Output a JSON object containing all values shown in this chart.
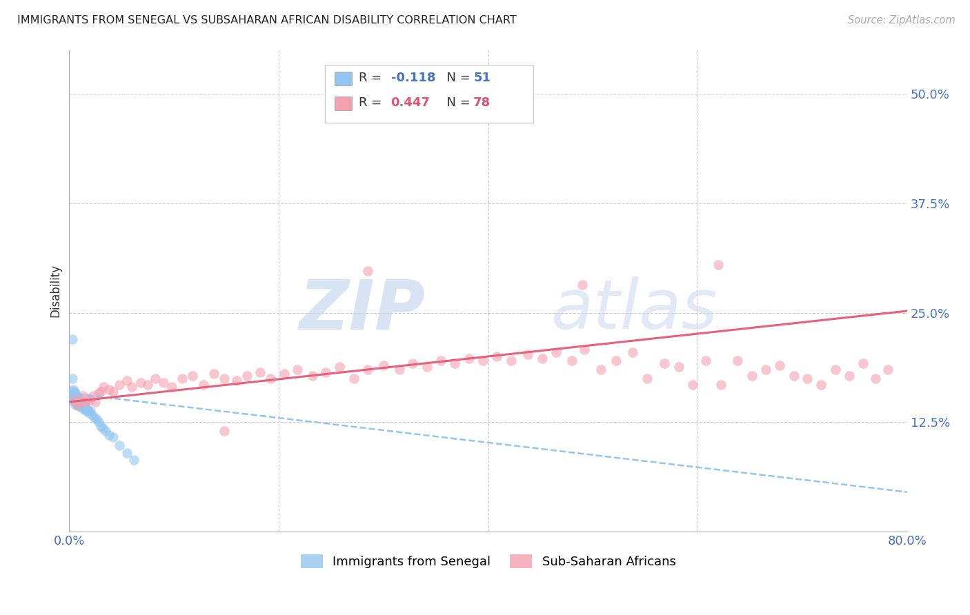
{
  "title": "IMMIGRANTS FROM SENEGAL VS SUBSAHARAN AFRICAN DISABILITY CORRELATION CHART",
  "source": "Source: ZipAtlas.com",
  "ylabel": "Disability",
  "xlim": [
    0.0,
    0.8
  ],
  "ylim": [
    0.0,
    0.55
  ],
  "xticks": [
    0.0,
    0.2,
    0.4,
    0.6,
    0.8
  ],
  "xticklabels": [
    "0.0%",
    "",
    "",
    "",
    "80.0%"
  ],
  "yticks": [
    0.0,
    0.125,
    0.25,
    0.375,
    0.5
  ],
  "yticklabels": [
    "",
    "12.5%",
    "25.0%",
    "37.5%",
    "50.0%"
  ],
  "grid_color": "#cccccc",
  "background_color": "#ffffff",
  "watermark_zip": "ZIP",
  "watermark_atlas": "atlas",
  "blue_color": "#92c5f0",
  "pink_color": "#f4a0b0",
  "trendline_blue_color": "#92c5f0",
  "trendline_pink_color": "#e8607a",
  "blue_x": [
    0.002,
    0.003,
    0.003,
    0.004,
    0.004,
    0.005,
    0.005,
    0.005,
    0.006,
    0.006,
    0.006,
    0.007,
    0.007,
    0.007,
    0.008,
    0.008,
    0.008,
    0.009,
    0.009,
    0.009,
    0.01,
    0.01,
    0.01,
    0.011,
    0.011,
    0.012,
    0.012,
    0.013,
    0.013,
    0.014,
    0.014,
    0.015,
    0.015,
    0.016,
    0.017,
    0.018,
    0.019,
    0.02,
    0.022,
    0.024,
    0.026,
    0.028,
    0.03,
    0.032,
    0.035,
    0.038,
    0.042,
    0.048,
    0.055,
    0.062,
    0.003
  ],
  "blue_y": [
    0.155,
    0.175,
    0.16,
    0.162,
    0.15,
    0.155,
    0.16,
    0.148,
    0.152,
    0.158,
    0.145,
    0.15,
    0.148,
    0.155,
    0.148,
    0.153,
    0.145,
    0.15,
    0.148,
    0.143,
    0.15,
    0.145,
    0.148,
    0.148,
    0.143,
    0.145,
    0.148,
    0.143,
    0.14,
    0.145,
    0.142,
    0.14,
    0.145,
    0.138,
    0.14,
    0.138,
    0.135,
    0.138,
    0.133,
    0.13,
    0.128,
    0.125,
    0.12,
    0.118,
    0.115,
    0.11,
    0.108,
    0.098,
    0.09,
    0.082,
    0.22
  ],
  "pink_x": [
    0.005,
    0.008,
    0.01,
    0.013,
    0.015,
    0.018,
    0.02,
    0.023,
    0.025,
    0.028,
    0.03,
    0.033,
    0.038,
    0.042,
    0.048,
    0.055,
    0.06,
    0.068,
    0.075,
    0.082,
    0.09,
    0.098,
    0.108,
    0.118,
    0.128,
    0.138,
    0.148,
    0.16,
    0.17,
    0.182,
    0.192,
    0.205,
    0.218,
    0.232,
    0.245,
    0.258,
    0.272,
    0.285,
    0.3,
    0.315,
    0.328,
    0.342,
    0.355,
    0.368,
    0.382,
    0.395,
    0.408,
    0.422,
    0.438,
    0.452,
    0.465,
    0.48,
    0.492,
    0.508,
    0.522,
    0.538,
    0.552,
    0.568,
    0.582,
    0.595,
    0.608,
    0.622,
    0.638,
    0.652,
    0.665,
    0.678,
    0.692,
    0.705,
    0.718,
    0.732,
    0.745,
    0.758,
    0.77,
    0.782,
    0.62,
    0.49,
    0.285,
    0.148
  ],
  "pink_y": [
    0.15,
    0.145,
    0.148,
    0.155,
    0.148,
    0.152,
    0.15,
    0.155,
    0.148,
    0.158,
    0.16,
    0.165,
    0.162,
    0.16,
    0.168,
    0.172,
    0.165,
    0.17,
    0.168,
    0.175,
    0.17,
    0.165,
    0.175,
    0.178,
    0.168,
    0.18,
    0.175,
    0.172,
    0.178,
    0.182,
    0.175,
    0.18,
    0.185,
    0.178,
    0.182,
    0.188,
    0.175,
    0.185,
    0.19,
    0.185,
    0.192,
    0.188,
    0.195,
    0.192,
    0.198,
    0.195,
    0.2,
    0.195,
    0.202,
    0.198,
    0.205,
    0.195,
    0.208,
    0.185,
    0.195,
    0.205,
    0.175,
    0.192,
    0.188,
    0.168,
    0.195,
    0.168,
    0.195,
    0.178,
    0.185,
    0.19,
    0.178,
    0.175,
    0.168,
    0.185,
    0.178,
    0.192,
    0.175,
    0.185,
    0.305,
    0.282,
    0.298,
    0.115
  ],
  "blue_trend_x": [
    0.0,
    0.8
  ],
  "blue_trend_y": [
    0.158,
    0.045
  ],
  "pink_trend_x": [
    0.0,
    0.8
  ],
  "pink_trend_y": [
    0.148,
    0.252
  ]
}
